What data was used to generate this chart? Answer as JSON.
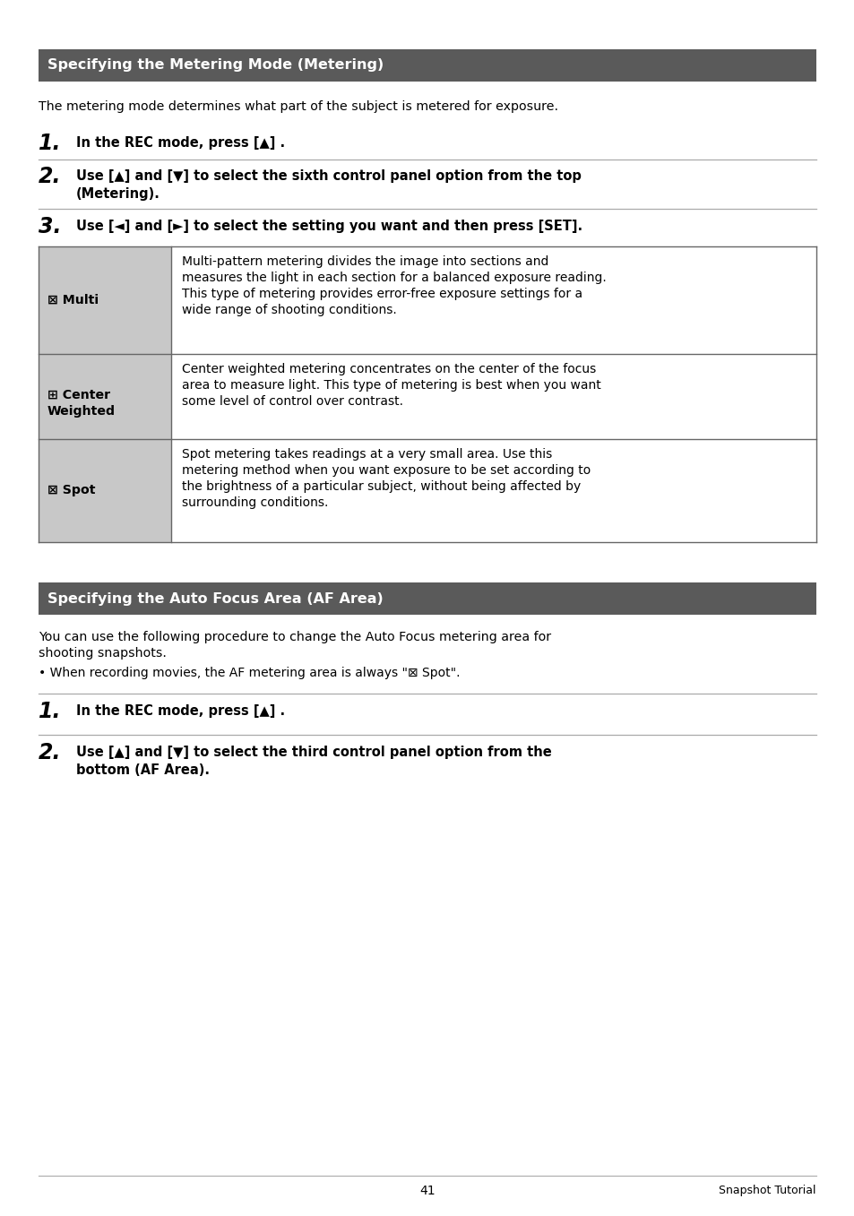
{
  "page_bg": "#ffffff",
  "header_bg": "#5a5a5a",
  "header_text_color": "#ffffff",
  "body_text_color": "#000000",
  "table_left_bg": "#c8c8c8",
  "table_border_color": "#666666",
  "section1_title": "Specifying the Metering Mode (Metering)",
  "section1_intro": "The metering mode determines what part of the subject is metered for exposure.",
  "step1_num": "1.",
  "step1_text": "In the REC mode, press [▲] .",
  "step2_num": "2.",
  "step2_line1": "Use [▲] and [▼] to select the sixth control panel option from the top",
  "step2_line2": "(Metering).",
  "step3_num": "3.",
  "step3_text": "Use [◄] and [►] to select the setting you want and then press [SET].",
  "row0_label": "⊠ Multi",
  "row0_desc_l1": "Multi-pattern metering divides the image into sections and",
  "row0_desc_l2": "measures the light in each section for a balanced exposure reading.",
  "row0_desc_l3": "This type of metering provides error-free exposure settings for a",
  "row0_desc_l4": "wide range of shooting conditions.",
  "row1_label_l1": "⊞ Center",
  "row1_label_l2": "Weighted",
  "row1_desc_l1": "Center weighted metering concentrates on the center of the focus",
  "row1_desc_l2": "area to measure light. This type of metering is best when you want",
  "row1_desc_l3": "some level of control over contrast.",
  "row2_label": "⊠ Spot",
  "row2_desc_l1": "Spot metering takes readings at a very small area. Use this",
  "row2_desc_l2": "metering method when you want exposure to be set according to",
  "row2_desc_l3": "the brightness of a particular subject, without being affected by",
  "row2_desc_l4": "surrounding conditions.",
  "section2_title": "Specifying the Auto Focus Area (AF Area)",
  "section2_intro1": "You can use the following procedure to change the Auto Focus metering area for",
  "section2_intro2": "shooting snapshots.",
  "section2_bullet": "• When recording movies, the AF metering area is always \"⊠ Spot\".",
  "step4_num": "1.",
  "step4_text": "In the REC mode, press [▲] .",
  "step5_num": "2.",
  "step5_line1": "Use [▲] and [▼] to select the third control panel option from the",
  "step5_line2": "bottom (AF Area).",
  "footer_page": "41",
  "footer_right": "Snapshot Tutorial"
}
